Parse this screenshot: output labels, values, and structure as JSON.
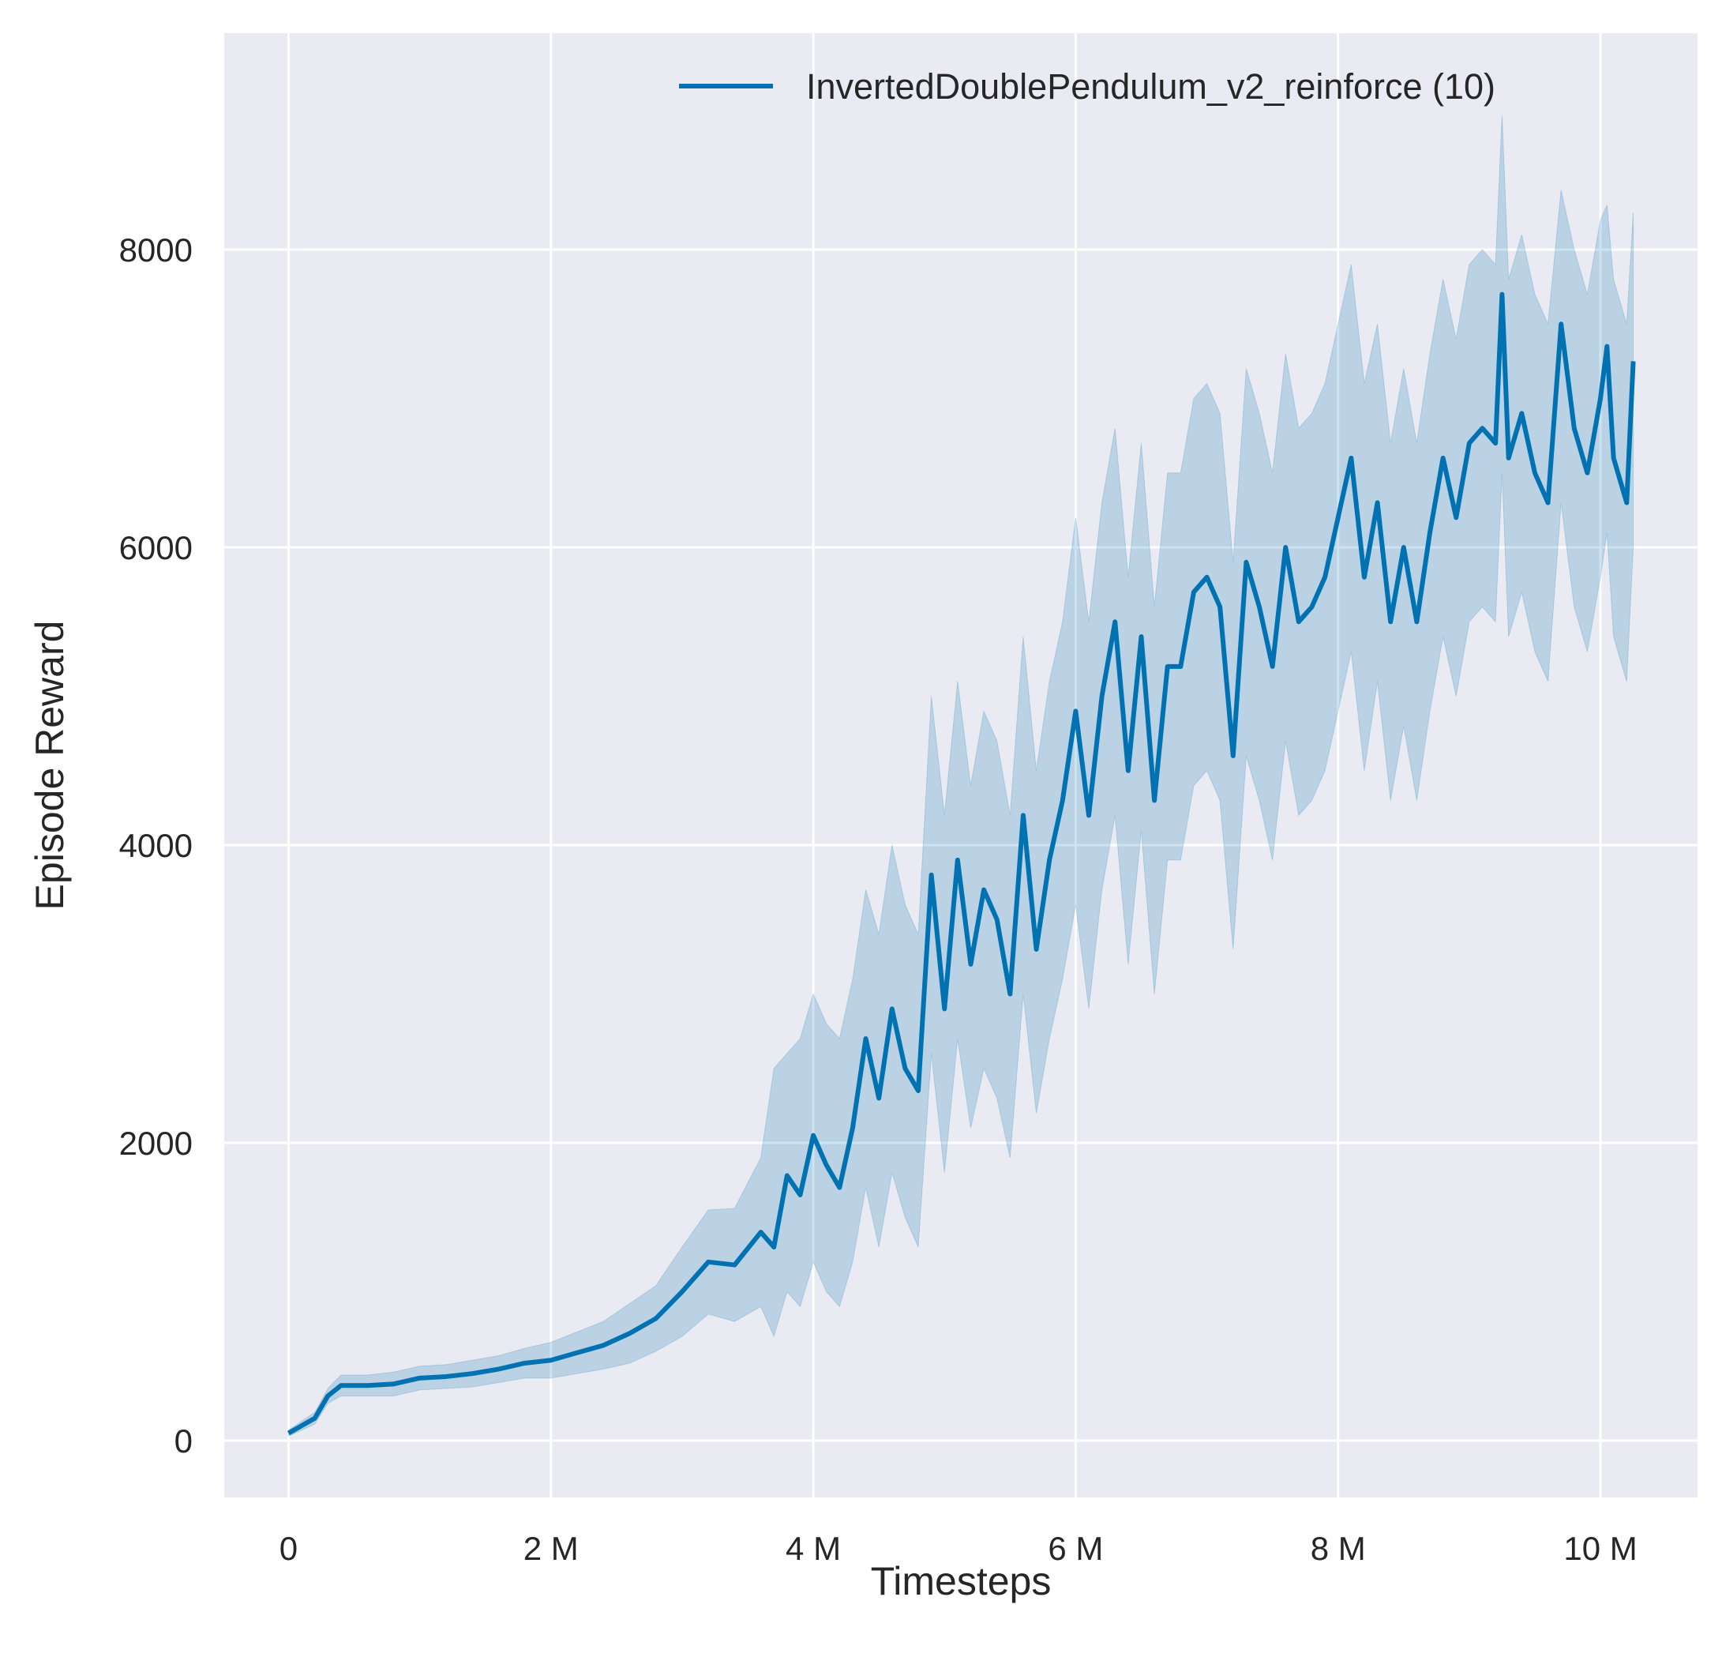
{
  "chart_data": {
    "type": "line",
    "title": "",
    "xlabel": "Timesteps",
    "ylabel": "Episode Reward",
    "xlim": [
      -0.49,
      10.74
    ],
    "ylim": [
      -382,
      9454
    ],
    "x_unit": "M",
    "grid": true,
    "background_color": "#eaeaf2",
    "legend_position": "top-right",
    "x_ticks": [
      0,
      2,
      4,
      6,
      8,
      10
    ],
    "x_tick_labels": [
      "0",
      "2 M",
      "4 M",
      "6 M",
      "8 M",
      "10 M"
    ],
    "y_ticks": [
      0,
      2000,
      4000,
      6000,
      8000
    ],
    "y_tick_labels": [
      "0",
      "2000",
      "4000",
      "6000",
      "8000"
    ],
    "series": [
      {
        "name": "InvertedDoublePendulum_v2_reinforce (10)",
        "color": "#0072b2",
        "band_color": "#0072b2",
        "x": [
          0,
          0.2,
          0.3,
          0.4,
          0.6,
          0.8,
          1.0,
          1.2,
          1.4,
          1.6,
          1.8,
          2.0,
          2.2,
          2.4,
          2.6,
          2.8,
          3.0,
          3.2,
          3.4,
          3.6,
          3.7,
          3.8,
          3.9,
          4.0,
          4.1,
          4.2,
          4.3,
          4.4,
          4.5,
          4.6,
          4.7,
          4.8,
          4.9,
          5.0,
          5.1,
          5.2,
          5.3,
          5.4,
          5.5,
          5.6,
          5.7,
          5.8,
          5.9,
          6.0,
          6.1,
          6.2,
          6.3,
          6.4,
          6.5,
          6.6,
          6.7,
          6.8,
          6.9,
          7.0,
          7.1,
          7.2,
          7.3,
          7.4,
          7.5,
          7.6,
          7.7,
          7.8,
          7.9,
          8.0,
          8.1,
          8.2,
          8.3,
          8.4,
          8.5,
          8.6,
          8.7,
          8.8,
          8.9,
          9.0,
          9.1,
          9.2,
          9.25,
          9.3,
          9.4,
          9.5,
          9.6,
          9.7,
          9.8,
          9.9,
          10.0,
          10.05,
          10.1,
          10.2,
          10.25
        ],
        "mean": [
          50,
          150,
          300,
          370,
          370,
          380,
          420,
          430,
          450,
          480,
          520,
          540,
          590,
          640,
          720,
          820,
          1000,
          1200,
          1180,
          1400,
          1300,
          1780,
          1650,
          2050,
          1850,
          1700,
          2100,
          2700,
          2300,
          2900,
          2500,
          2350,
          3800,
          2900,
          3900,
          3200,
          3700,
          3500,
          3000,
          4200,
          3300,
          3900,
          4300,
          4900,
          4200,
          5000,
          5500,
          4500,
          5400,
          4300,
          5200,
          5200,
          5700,
          5800,
          5600,
          4600,
          5900,
          5600,
          5200,
          6000,
          5500,
          5600,
          5800,
          6200,
          6600,
          5800,
          6300,
          5500,
          6000,
          5500,
          6100,
          6600,
          6200,
          6700,
          6800,
          6700,
          7700,
          6600,
          6900,
          6500,
          6300,
          7500,
          6800,
          6500,
          7000,
          7350,
          6600,
          6300,
          7250
        ],
        "lower": [
          30,
          110,
          250,
          300,
          300,
          300,
          340,
          350,
          360,
          390,
          420,
          420,
          450,
          480,
          520,
          600,
          700,
          850,
          800,
          900,
          700,
          1000,
          900,
          1200,
          1000,
          900,
          1200,
          1700,
          1300,
          1800,
          1500,
          1300,
          2600,
          1800,
          2700,
          2100,
          2500,
          2300,
          1900,
          3000,
          2200,
          2700,
          3100,
          3600,
          2900,
          3700,
          4200,
          3200,
          4100,
          3000,
          3900,
          3900,
          4400,
          4500,
          4300,
          3300,
          4600,
          4300,
          3900,
          4700,
          4200,
          4300,
          4500,
          4900,
          5300,
          4500,
          5100,
          4300,
          4800,
          4300,
          4900,
          5400,
          5000,
          5500,
          5600,
          5500,
          6500,
          5400,
          5700,
          5300,
          5100,
          6300,
          5600,
          5300,
          5800,
          6100,
          5400,
          5100,
          6000
        ],
        "upper": [
          70,
          190,
          350,
          440,
          440,
          460,
          500,
          510,
          540,
          570,
          620,
          660,
          730,
          800,
          920,
          1040,
          1300,
          1550,
          1560,
          1900,
          2500,
          2600,
          2700,
          3000,
          2800,
          2700,
          3100,
          3700,
          3400,
          4000,
          3600,
          3400,
          5000,
          4200,
          5100,
          4400,
          4900,
          4700,
          4200,
          5400,
          4500,
          5100,
          5500,
          6200,
          5500,
          6300,
          6800,
          5800,
          6700,
          5600,
          6500,
          6500,
          7000,
          7100,
          6900,
          5900,
          7200,
          6900,
          6500,
          7300,
          6800,
          6900,
          7100,
          7500,
          7900,
          7100,
          7500,
          6700,
          7200,
          6700,
          7300,
          7800,
          7400,
          7900,
          8000,
          7900,
          8900,
          7800,
          8100,
          7700,
          7500,
          8400,
          8000,
          7700,
          8200,
          8300,
          7800,
          7500,
          8250
        ]
      }
    ]
  }
}
